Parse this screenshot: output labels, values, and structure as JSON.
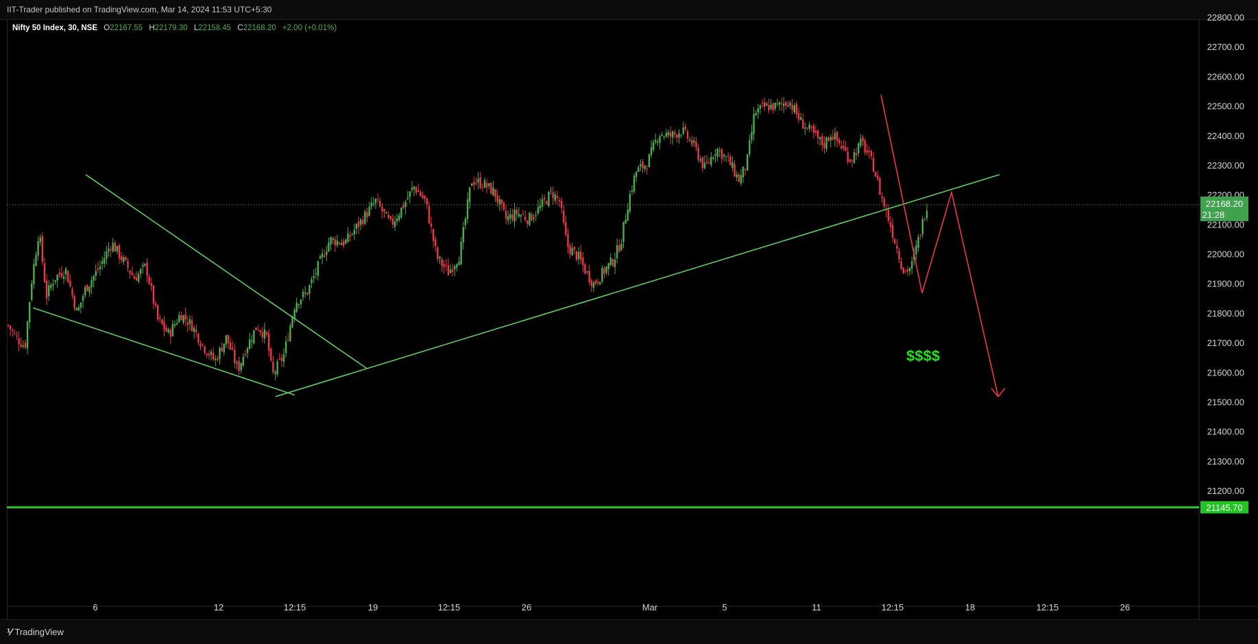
{
  "header": {
    "published_text": "IIT-Trader published on TradingView.com, Mar 14, 2024 11:53 UTC+5:30"
  },
  "legend": {
    "symbol": "Nifty 50 Index, 30, NSE",
    "o_label": "O",
    "o_value": "22167.55",
    "h_label": "H",
    "h_value": "22179.30",
    "l_label": "L",
    "l_value": "22158.45",
    "c_label": "C",
    "c_value": "22168.20",
    "change": "+2.00 (+0.01%)"
  },
  "footer": {
    "brand_icon": "tradingview-logo-icon",
    "brand": "TradingView"
  },
  "colors": {
    "up": "#4caf50",
    "down": "#f23645",
    "trendline": "#5fcf5f",
    "projection": "#f23645",
    "price_tag": "#3fa34d",
    "horizontal_line": "#22c322",
    "money": "#21e121"
  },
  "chart_data": {
    "type": "candlestick",
    "title": "",
    "ylim": [
      21100,
      22800
    ],
    "y_ticks": [
      "22800.00",
      "22700.00",
      "22600.00",
      "22500.00",
      "22400.00",
      "22300.00",
      "22200.00",
      "22100.00",
      "22000.00",
      "21900.00",
      "21800.00",
      "21700.00",
      "21600.00",
      "21500.00",
      "21400.00",
      "21300.00",
      "21200.00"
    ],
    "x_ticks": [
      "6",
      "12",
      "12:15",
      "19",
      "12:15",
      "26",
      "Mar",
      "5",
      "11",
      "12:15",
      "18",
      "12:15",
      "26"
    ],
    "last_price": {
      "value": "22168.20",
      "countdown": "21:28"
    },
    "horizontal_line": {
      "value": "21145.70"
    },
    "close_path": [
      [
        0.0,
        21760
      ],
      [
        0.01,
        21720
      ],
      [
        0.022,
        21690
      ],
      [
        0.03,
        21900
      ],
      [
        0.04,
        22080
      ],
      [
        0.05,
        21860
      ],
      [
        0.06,
        21920
      ],
      [
        0.075,
        21950
      ],
      [
        0.09,
        21800
      ],
      [
        0.1,
        21880
      ],
      [
        0.12,
        21960
      ],
      [
        0.135,
        22040
      ],
      [
        0.15,
        21980
      ],
      [
        0.165,
        21920
      ],
      [
        0.18,
        21960
      ],
      [
        0.195,
        21780
      ],
      [
        0.21,
        21730
      ],
      [
        0.225,
        21800
      ],
      [
        0.24,
        21760
      ],
      [
        0.255,
        21690
      ],
      [
        0.27,
        21640
      ],
      [
        0.285,
        21720
      ],
      [
        0.3,
        21610
      ],
      [
        0.31,
        21680
      ],
      [
        0.325,
        21760
      ],
      [
        0.338,
        21720
      ],
      [
        0.345,
        21590
      ],
      [
        0.36,
        21660
      ],
      [
        0.375,
        21840
      ],
      [
        0.39,
        21870
      ],
      [
        0.405,
        21960
      ],
      [
        0.42,
        22050
      ],
      [
        0.44,
        22040
      ],
      [
        0.46,
        22110
      ],
      [
        0.48,
        22180
      ],
      [
        0.5,
        22100
      ],
      [
        0.515,
        22160
      ],
      [
        0.53,
        22230
      ],
      [
        0.545,
        22180
      ],
      [
        0.56,
        21990
      ],
      [
        0.575,
        21940
      ],
      [
        0.59,
        22000
      ],
      [
        0.605,
        22250
      ],
      [
        0.62,
        22240
      ],
      [
        0.635,
        22210
      ],
      [
        0.65,
        22120
      ],
      [
        0.665,
        22140
      ],
      [
        0.68,
        22120
      ],
      [
        0.695,
        22160
      ],
      [
        0.71,
        22210
      ],
      [
        0.72,
        22180
      ],
      [
        0.73,
        22030
      ],
      [
        0.745,
        21990
      ],
      [
        0.755,
        21940
      ],
      [
        0.765,
        21900
      ],
      [
        0.78,
        21950
      ],
      [
        0.79,
        21980
      ],
      [
        0.8,
        22040
      ],
      [
        0.81,
        22180
      ],
      [
        0.82,
        22280
      ],
      [
        0.835,
        22310
      ],
      [
        0.85,
        22410
      ],
      [
        0.865,
        22400
      ],
      [
        0.88,
        22420
      ],
      [
        0.895,
        22370
      ],
      [
        0.91,
        22290
      ],
      [
        0.925,
        22360
      ],
      [
        0.94,
        22320
      ],
      [
        0.955,
        22250
      ],
      [
        0.965,
        22310
      ],
      [
        0.975,
        22480
      ],
      [
        0.99,
        22500
      ],
      [
        1.005,
        22500
      ],
      [
        1.02,
        22520
      ],
      [
        1.035,
        22450
      ],
      [
        1.05,
        22410
      ],
      [
        1.065,
        22370
      ],
      [
        1.075,
        22410
      ],
      [
        1.09,
        22360
      ],
      [
        1.1,
        22320
      ],
      [
        1.115,
        22380
      ],
      [
        1.13,
        22300
      ],
      [
        1.14,
        22200
      ],
      [
        1.15,
        22120
      ],
      [
        1.16,
        22030
      ],
      [
        1.17,
        21940
      ],
      [
        1.18,
        21960
      ],
      [
        1.19,
        22060
      ],
      [
        1.2,
        22168
      ]
    ],
    "drawings": {
      "falling_wedge_upper": [
        [
          21790,
          22270
        ],
        [
          21760,
          21615
        ]
      ],
      "falling_wedge_lower": [
        [
          21820,
          21815
        ],
        [
          21520,
          21525
        ]
      ],
      "rising_trendline": [
        [
          21520,
          22270
        ]
      ],
      "projection_path": [
        22540,
        21870,
        22210,
        21520
      ],
      "annotation_text": "$$$$"
    }
  }
}
